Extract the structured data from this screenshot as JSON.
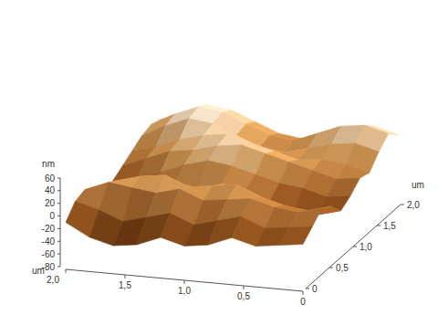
{
  "chart_data": {
    "type": "surface",
    "x": [
      0,
      0.2,
      0.4,
      0.6,
      0.8,
      1.0,
      1.2,
      1.4,
      1.6,
      1.8,
      2.0
    ],
    "y": [
      0,
      0.2,
      0.4,
      0.6,
      0.8,
      1.0,
      1.2,
      1.4,
      1.6,
      1.8,
      2.0
    ],
    "z": [
      [
        -10,
        -15,
        -20,
        -10,
        -25,
        -30,
        -20,
        -35,
        -40,
        -30,
        -10
      ],
      [
        5,
        0,
        -5,
        10,
        0,
        -10,
        5,
        -5,
        -15,
        0,
        10
      ],
      [
        20,
        10,
        15,
        25,
        20,
        15,
        30,
        20,
        25,
        30,
        15
      ],
      [
        10,
        0,
        5,
        15,
        30,
        25,
        20,
        35,
        30,
        20,
        5
      ],
      [
        -10,
        -20,
        -15,
        -5,
        10,
        15,
        5,
        10,
        0,
        -15,
        -20
      ],
      [
        0,
        -5,
        5,
        10,
        20,
        30,
        35,
        25,
        10,
        -5,
        -10
      ],
      [
        15,
        10,
        20,
        30,
        40,
        50,
        45,
        35,
        30,
        15,
        0
      ],
      [
        10,
        20,
        25,
        20,
        30,
        40,
        50,
        45,
        35,
        20,
        10
      ],
      [
        30,
        40,
        35,
        25,
        15,
        20,
        35,
        50,
        55,
        40,
        20
      ],
      [
        45,
        55,
        50,
        35,
        20,
        25,
        40,
        55,
        60,
        45,
        25
      ],
      [
        30,
        40,
        35,
        25,
        10,
        15,
        30,
        45,
        50,
        35,
        20
      ]
    ],
    "xlim": [
      0,
      2
    ],
    "ylim": [
      0,
      2
    ],
    "zlim": [
      -80,
      60
    ],
    "xticks": [
      0,
      {
        "value": 0.5,
        "label": "0,5"
      },
      {
        "value": 1,
        "label": "1,0"
      },
      {
        "value": 1.5,
        "label": "1,5"
      },
      {
        "value": 2,
        "label": "2,0"
      }
    ],
    "yticks": [
      0,
      {
        "value": 0.5,
        "label": "0,5"
      },
      {
        "value": 1,
        "label": "1,0"
      },
      {
        "value": 1.5,
        "label": "1,5"
      },
      {
        "value": 2,
        "label": "2,0"
      }
    ],
    "zticks": [
      -80,
      -60,
      -40,
      -20,
      0,
      20,
      40,
      60
    ],
    "x_label": "um",
    "y_label": "um",
    "z_label": "nm"
  }
}
